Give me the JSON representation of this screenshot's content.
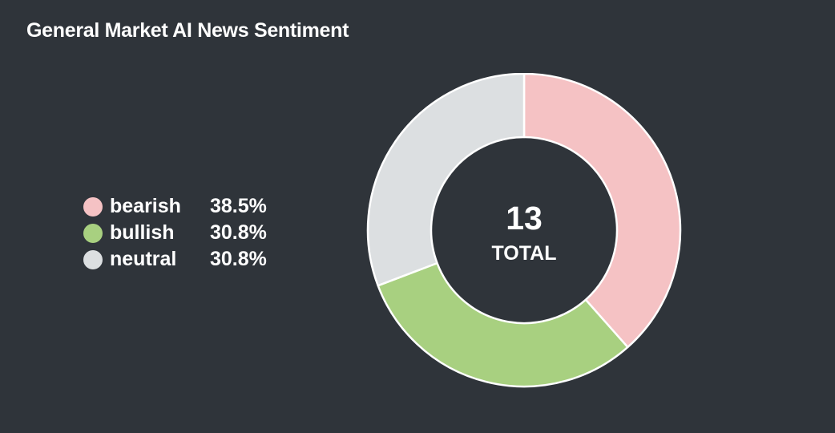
{
  "chart_data": {
    "type": "pie",
    "title": "General Market AI News Sentiment",
    "categories": [
      "bearish",
      "bullish",
      "neutral"
    ],
    "values": [
      38.5,
      30.8,
      30.8
    ],
    "value_labels": [
      "38.5%",
      "30.8%",
      "30.8%"
    ],
    "colors": [
      "#f5c2c4",
      "#a8d080",
      "#dcdfe1"
    ],
    "donut": true,
    "center_value": "13",
    "center_label": "TOTAL",
    "legend_position": "left"
  },
  "theme": {
    "background": "#2f343a",
    "text": "#ffffff",
    "slice_border": "#ffffff"
  }
}
